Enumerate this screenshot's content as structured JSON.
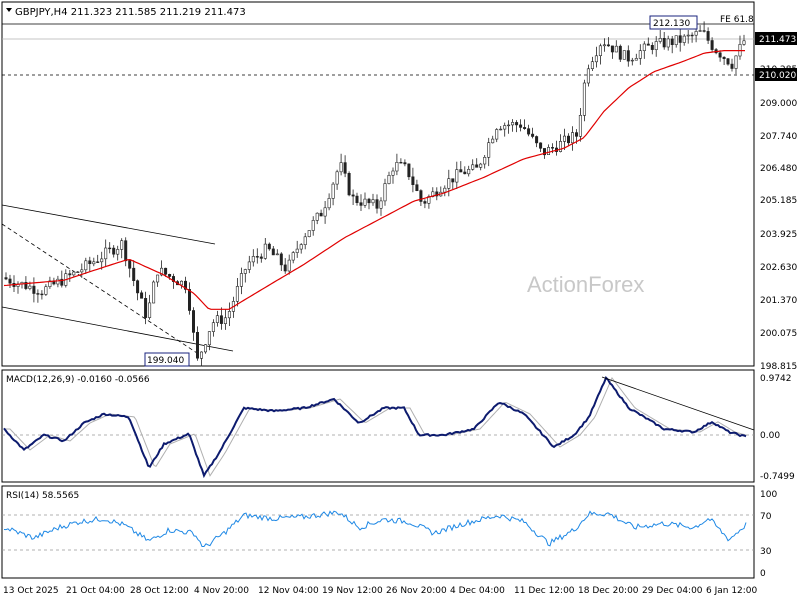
{
  "chart_data": {
    "type": "candlestick",
    "header": "GBPJPY,H4  211.323 211.585 211.219 211.473",
    "watermark": "ActionForex",
    "price_axis": {
      "ticks": [
        "209.000",
        "207.740",
        "206.480",
        "205.185",
        "203.925",
        "202.630",
        "201.370",
        "200.075",
        "198.815"
      ],
      "current_price": "211.473",
      "current_value": 211.473,
      "level_label": "210.020",
      "level_value": 210.02,
      "hidden_tick": "210.285"
    },
    "annotations": {
      "high_label": "212.130",
      "high_value": 212.13,
      "low_label": "199.040",
      "low_value": 199.04,
      "fe_label": "FE 61.8"
    },
    "x_labels": [
      "13 Oct 2025",
      "21 Oct 04:00",
      "28 Oct 12:00",
      "4 Nov 20:00",
      "12 Nov 04:00",
      "19 Nov 12:00",
      "26 Nov 20:00",
      "4 Dec 04:00",
      "11 Dec 12:00",
      "18 Dec 20:00",
      "29 Dec 04:00",
      "6 Jan 12:00"
    ],
    "price_anchors": [
      [
        0,
        202.5
      ],
      [
        40,
        202.0
      ],
      [
        70,
        202.6
      ],
      [
        95,
        203.2
      ],
      [
        120,
        203.8
      ],
      [
        135,
        202.0
      ],
      [
        145,
        201.0
      ],
      [
        155,
        202.8
      ],
      [
        170,
        202.5
      ],
      [
        185,
        202.2
      ],
      [
        195,
        199.3
      ],
      [
        210,
        200.8
      ],
      [
        225,
        201.0
      ],
      [
        245,
        203.0
      ],
      [
        265,
        203.6
      ],
      [
        285,
        202.8
      ],
      [
        300,
        204.0
      ],
      [
        320,
        205.0
      ],
      [
        338,
        206.8
      ],
      [
        350,
        205.5
      ],
      [
        375,
        205.2
      ],
      [
        392,
        206.8
      ],
      [
        405,
        206.6
      ],
      [
        420,
        205.3
      ],
      [
        440,
        206.0
      ],
      [
        460,
        206.5
      ],
      [
        475,
        206.6
      ],
      [
        495,
        208.3
      ],
      [
        520,
        208.3
      ],
      [
        540,
        207.2
      ],
      [
        555,
        207.5
      ],
      [
        575,
        207.9
      ],
      [
        585,
        210.5
      ],
      [
        600,
        211.5
      ],
      [
        625,
        210.8
      ],
      [
        650,
        211.3
      ],
      [
        680,
        211.5
      ],
      [
        700,
        211.8
      ],
      [
        712,
        211.2
      ],
      [
        730,
        210.6
      ],
      [
        742,
        211.47
      ]
    ],
    "sma_anchors": [
      [
        0,
        202.2
      ],
      [
        60,
        202.4
      ],
      [
        100,
        202.9
      ],
      [
        125,
        203.2
      ],
      [
        160,
        202.6
      ],
      [
        190,
        201.9
      ],
      [
        205,
        201.3
      ],
      [
        225,
        201.3
      ],
      [
        260,
        202.1
      ],
      [
        300,
        203.0
      ],
      [
        340,
        204.0
      ],
      [
        380,
        204.8
      ],
      [
        410,
        205.4
      ],
      [
        440,
        205.7
      ],
      [
        480,
        206.3
      ],
      [
        520,
        207.0
      ],
      [
        560,
        207.4
      ],
      [
        580,
        207.8
      ],
      [
        600,
        208.8
      ],
      [
        625,
        209.7
      ],
      [
        650,
        210.3
      ],
      [
        680,
        210.7
      ],
      [
        700,
        211.0
      ],
      [
        720,
        211.1
      ],
      [
        742,
        211.1
      ]
    ],
    "macd": {
      "label": "MACD(12,26,9) -0.0160 -0.0566",
      "ticks": [
        "0.9742",
        "0.00",
        "-0.7499"
      ],
      "max": 0.9742,
      "min": -0.7499,
      "anchors": [
        [
          0,
          0.1
        ],
        [
          20,
          -0.25
        ],
        [
          40,
          0.0
        ],
        [
          60,
          -0.1
        ],
        [
          80,
          0.2
        ],
        [
          100,
          0.35
        ],
        [
          125,
          0.3
        ],
        [
          145,
          -0.55
        ],
        [
          160,
          -0.15
        ],
        [
          185,
          0.02
        ],
        [
          200,
          -0.68
        ],
        [
          215,
          -0.3
        ],
        [
          240,
          0.45
        ],
        [
          270,
          0.4
        ],
        [
          300,
          0.45
        ],
        [
          330,
          0.6
        ],
        [
          355,
          0.2
        ],
        [
          380,
          0.45
        ],
        [
          400,
          0.45
        ],
        [
          415,
          0.0
        ],
        [
          440,
          0.0
        ],
        [
          470,
          0.1
        ],
        [
          495,
          0.55
        ],
        [
          520,
          0.35
        ],
        [
          550,
          -0.2
        ],
        [
          570,
          0.0
        ],
        [
          585,
          0.3
        ],
        [
          602,
          0.95
        ],
        [
          625,
          0.45
        ],
        [
          660,
          0.1
        ],
        [
          690,
          0.05
        ],
        [
          708,
          0.22
        ],
        [
          725,
          0.05
        ],
        [
          742,
          -0.03
        ]
      ],
      "signal_lag": 6
    },
    "rsi": {
      "label": "RSI(14) 58.5565",
      "ticks": [
        "100",
        "70",
        "30",
        "0"
      ],
      "anchors": [
        [
          0,
          55
        ],
        [
          30,
          42
        ],
        [
          55,
          55
        ],
        [
          75,
          62
        ],
        [
          100,
          66
        ],
        [
          120,
          58
        ],
        [
          145,
          38
        ],
        [
          165,
          52
        ],
        [
          190,
          48
        ],
        [
          200,
          30
        ],
        [
          220,
          48
        ],
        [
          240,
          70
        ],
        [
          270,
          66
        ],
        [
          300,
          68
        ],
        [
          335,
          74
        ],
        [
          355,
          55
        ],
        [
          380,
          65
        ],
        [
          405,
          62
        ],
        [
          430,
          48
        ],
        [
          460,
          60
        ],
        [
          495,
          70
        ],
        [
          520,
          62
        ],
        [
          545,
          35
        ],
        [
          570,
          52
        ],
        [
          585,
          72
        ],
        [
          605,
          72
        ],
        [
          630,
          55
        ],
        [
          660,
          60
        ],
        [
          690,
          55
        ],
        [
          705,
          66
        ],
        [
          725,
          40
        ],
        [
          742,
          58.5
        ]
      ]
    }
  }
}
